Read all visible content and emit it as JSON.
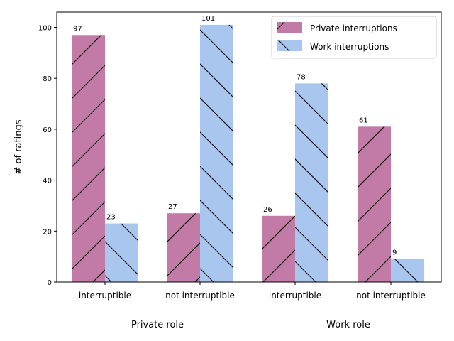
{
  "chart_data": {
    "type": "bar",
    "ylabel": "# of ratings",
    "ylim": [
      0,
      106
    ],
    "yticks": [
      0,
      20,
      40,
      60,
      80,
      100
    ],
    "categories": [
      "interruptible",
      "not interruptible",
      "interruptible",
      "not interruptible"
    ],
    "groups": [
      "Private role",
      "Work role"
    ],
    "series": [
      {
        "name": "Private interruptions",
        "values": [
          97,
          27,
          26,
          61
        ],
        "color": "#c27ba6",
        "hatch": "/"
      },
      {
        "name": "Work interruptions",
        "values": [
          23,
          101,
          78,
          9
        ],
        "color": "#a8c6ee",
        "hatch": "\\"
      }
    ],
    "legend_position": "top-right",
    "grid": false
  }
}
